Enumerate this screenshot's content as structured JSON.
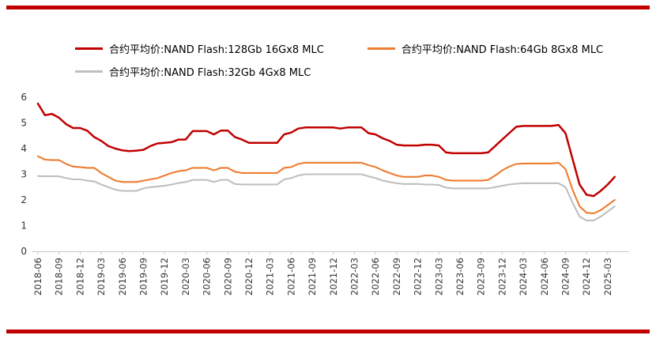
{
  "page": {
    "background": "#ffffff",
    "accent_red": "#c00000"
  },
  "legend": {
    "items": [
      {
        "label": "合约平均价:NAND Flash:128Gb 16Gx8 MLC",
        "color": "#c00000"
      },
      {
        "label": "合约平均价:NAND Flash:64Gb 8Gx8 MLC",
        "color": "#ed7d31"
      },
      {
        "label": "合约平均价:NAND Flash:32Gb 4Gx8 MLC",
        "color": "#bfbfbf"
      }
    ]
  },
  "chart_data": {
    "type": "line",
    "title": "",
    "xlabel": "",
    "ylabel": "",
    "ylim": [
      0,
      6
    ],
    "yticks": [
      0,
      1,
      2,
      3,
      4,
      5,
      6
    ],
    "grid": false,
    "legend_position": "top-left",
    "x": [
      "2018-06",
      "2018-07",
      "2018-08",
      "2018-09",
      "2018-10",
      "2018-11",
      "2018-12",
      "2019-01",
      "2019-02",
      "2019-03",
      "2019-04",
      "2019-05",
      "2019-06",
      "2019-07",
      "2019-08",
      "2019-09",
      "2019-10",
      "2019-11",
      "2019-12",
      "2020-01",
      "2020-02",
      "2020-03",
      "2020-04",
      "2020-05",
      "2020-06",
      "2020-07",
      "2020-08",
      "2020-09",
      "2020-10",
      "2020-11",
      "2020-12",
      "2021-01",
      "2021-02",
      "2021-03",
      "2021-04",
      "2021-05",
      "2021-06",
      "2021-07",
      "2021-08",
      "2021-09",
      "2021-10",
      "2021-11",
      "2021-12",
      "2022-01",
      "2022-02",
      "2022-03",
      "2022-04",
      "2022-05",
      "2022-06",
      "2022-07",
      "2022-08",
      "2022-09",
      "2022-10",
      "2022-11",
      "2022-12",
      "2023-01",
      "2023-02",
      "2023-03",
      "2023-04",
      "2023-05",
      "2023-06",
      "2023-07",
      "2023-08",
      "2023-09",
      "2023-10",
      "2023-11",
      "2023-12",
      "2024-01",
      "2024-02",
      "2024-03",
      "2024-04",
      "2024-05",
      "2024-06",
      "2024-07",
      "2024-08",
      "2024-09",
      "2024-10",
      "2024-11",
      "2024-12",
      "2025-01",
      "2025-02",
      "2025-03",
      "2025-04"
    ],
    "x_tick_labels": [
      "2018-06",
      "2018-09",
      "2018-12",
      "2019-03",
      "2019-06",
      "2019-09",
      "2019-12",
      "2020-03",
      "2020-06",
      "2020-09",
      "2020-12",
      "2021-03",
      "2021-06",
      "2021-09",
      "2021-12",
      "2022-03",
      "2022-06",
      "2022-09",
      "2022-12",
      "2023-03",
      "2023-06",
      "2023-09",
      "2023-12",
      "2024-03",
      "2024-06",
      "2024-09",
      "2024-12",
      "2025-03"
    ],
    "series": [
      {
        "name": "合约平均价:NAND Flash:128Gb 16Gx8 MLC",
        "color": "#c00000",
        "values": [
          5.75,
          5.3,
          5.35,
          5.2,
          4.95,
          4.8,
          4.8,
          4.7,
          4.45,
          4.3,
          4.1,
          4.0,
          3.93,
          3.9,
          3.92,
          3.95,
          4.1,
          4.2,
          4.22,
          4.25,
          4.35,
          4.35,
          4.68,
          4.68,
          4.68,
          4.55,
          4.7,
          4.7,
          4.45,
          4.35,
          4.22,
          4.22,
          4.22,
          4.22,
          4.22,
          4.55,
          4.62,
          4.78,
          4.82,
          4.82,
          4.82,
          4.82,
          4.82,
          4.78,
          4.82,
          4.82,
          4.82,
          4.6,
          4.55,
          4.4,
          4.3,
          4.15,
          4.12,
          4.12,
          4.12,
          4.15,
          4.15,
          4.12,
          3.85,
          3.82,
          3.82,
          3.82,
          3.82,
          3.82,
          3.85,
          4.1,
          4.35,
          4.6,
          4.85,
          4.88,
          4.88,
          4.88,
          4.88,
          4.88,
          4.92,
          4.6,
          3.6,
          2.6,
          2.2,
          2.15,
          2.35,
          2.6,
          2.9
        ]
      },
      {
        "name": "合约平均价:NAND Flash:64Gb 8Gx8 MLC",
        "color": "#ed7d31",
        "values": [
          3.7,
          3.57,
          3.55,
          3.55,
          3.4,
          3.3,
          3.28,
          3.25,
          3.25,
          3.05,
          2.9,
          2.75,
          2.7,
          2.7,
          2.7,
          2.75,
          2.8,
          2.85,
          2.95,
          3.05,
          3.12,
          3.15,
          3.25,
          3.25,
          3.25,
          3.15,
          3.25,
          3.25,
          3.1,
          3.05,
          3.05,
          3.05,
          3.05,
          3.05,
          3.05,
          3.25,
          3.28,
          3.4,
          3.45,
          3.45,
          3.45,
          3.45,
          3.45,
          3.45,
          3.45,
          3.45,
          3.45,
          3.35,
          3.28,
          3.15,
          3.05,
          2.95,
          2.9,
          2.9,
          2.9,
          2.95,
          2.95,
          2.9,
          2.78,
          2.75,
          2.75,
          2.75,
          2.75,
          2.75,
          2.78,
          2.95,
          3.15,
          3.3,
          3.4,
          3.42,
          3.42,
          3.42,
          3.42,
          3.42,
          3.45,
          3.2,
          2.4,
          1.75,
          1.5,
          1.48,
          1.6,
          1.8,
          2.0
        ]
      },
      {
        "name": "合约平均价:NAND Flash:32Gb 4Gx8 MLC",
        "color": "#bfbfbf",
        "values": [
          2.93,
          2.92,
          2.92,
          2.92,
          2.85,
          2.8,
          2.8,
          2.75,
          2.72,
          2.6,
          2.5,
          2.4,
          2.35,
          2.35,
          2.35,
          2.45,
          2.5,
          2.52,
          2.55,
          2.6,
          2.66,
          2.7,
          2.78,
          2.78,
          2.78,
          2.7,
          2.78,
          2.78,
          2.62,
          2.6,
          2.6,
          2.6,
          2.6,
          2.6,
          2.6,
          2.8,
          2.85,
          2.95,
          3.0,
          3.0,
          3.0,
          3.0,
          3.0,
          3.0,
          3.0,
          3.0,
          3.0,
          2.92,
          2.85,
          2.75,
          2.7,
          2.65,
          2.62,
          2.62,
          2.62,
          2.6,
          2.6,
          2.58,
          2.48,
          2.45,
          2.45,
          2.45,
          2.45,
          2.45,
          2.45,
          2.5,
          2.55,
          2.6,
          2.63,
          2.65,
          2.65,
          2.65,
          2.65,
          2.65,
          2.65,
          2.5,
          1.9,
          1.35,
          1.2,
          1.2,
          1.35,
          1.55,
          1.75
        ]
      }
    ]
  }
}
